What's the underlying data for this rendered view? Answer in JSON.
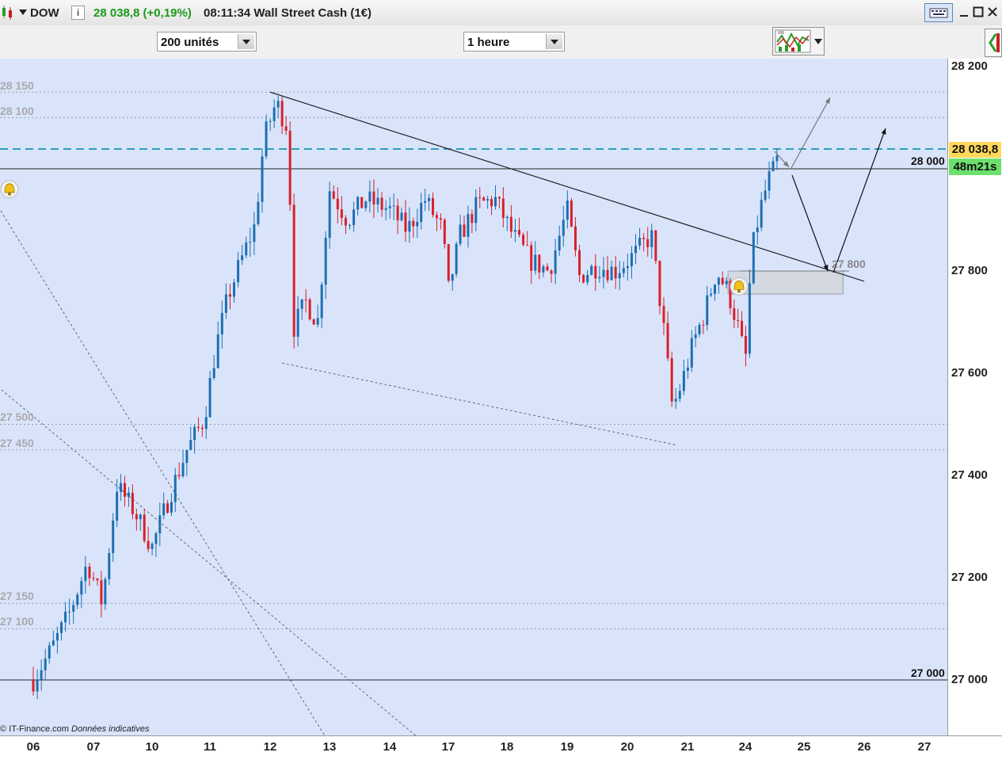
{
  "header": {
    "symbol": "DOW",
    "quote": "28 038,8 (+0,19%)",
    "time_title": "08:11:34 Wall Street Cash (1€)",
    "quote_color": "#1a9a1a"
  },
  "toolbar": {
    "units_select": "200 unités",
    "period_select": "1 heure"
  },
  "price_labels": {
    "current_price": "28 038,8",
    "countdown": "48m21s"
  },
  "footer": {
    "source": "© IT-Finance.com",
    "disclaimer": "Données indicatives"
  },
  "levels": {
    "left": [
      "28 150",
      "28 100",
      "27 500",
      "27 450",
      "27 150",
      "27 100"
    ],
    "right": [
      "28 000",
      "27 800",
      "27 000"
    ]
  },
  "chart_data": {
    "type": "candlestick",
    "title": "Wall Street Cash (1€)",
    "timeframe": "1 heure",
    "ylim": [
      26900,
      28220
    ],
    "y_ticks": [
      27000,
      27200,
      27400,
      27600,
      27800,
      28000,
      28200
    ],
    "y_tick_labels": [
      "27 000",
      "27 200",
      "27 400",
      "27 600",
      "27 800",
      "28 000",
      "28 200"
    ],
    "x_tick_labels": [
      "06",
      "07",
      "10",
      "11",
      "12",
      "13",
      "14",
      "17",
      "18",
      "19",
      "20",
      "21",
      "24",
      "25",
      "26",
      "27"
    ],
    "close_path": [
      [
        0,
        27000
      ],
      [
        0.3,
        27060
      ],
      [
        0.6,
        27130
      ],
      [
        0.9,
        27230
      ],
      [
        1.15,
        27150
      ],
      [
        1.4,
        27380
      ],
      [
        1.7,
        27330
      ],
      [
        2.0,
        27260
      ],
      [
        2.3,
        27360
      ],
      [
        2.6,
        27450
      ],
      [
        2.9,
        27510
      ],
      [
        3.1,
        27650
      ],
      [
        3.3,
        27750
      ],
      [
        3.55,
        27830
      ],
      [
        3.75,
        27890
      ],
      [
        3.9,
        28060
      ],
      [
        4.1,
        28130
      ],
      [
        4.3,
        28080
      ],
      [
        4.4,
        27690
      ],
      [
        4.6,
        27740
      ],
      [
        4.8,
        27700
      ],
      [
        5.0,
        27960
      ],
      [
        5.3,
        27900
      ],
      [
        5.6,
        27940
      ],
      [
        6.0,
        27920
      ],
      [
        6.3,
        27880
      ],
      [
        6.6,
        27940
      ],
      [
        6.9,
        27880
      ],
      [
        7.0,
        27760
      ],
      [
        7.2,
        27870
      ],
      [
        7.5,
        27930
      ],
      [
        7.8,
        27940
      ],
      [
        8.1,
        27870
      ],
      [
        8.4,
        27820
      ],
      [
        8.7,
        27800
      ],
      [
        9.0,
        27920
      ],
      [
        9.2,
        27790
      ],
      [
        9.5,
        27810
      ],
      [
        9.8,
        27800
      ],
      [
        10.1,
        27830
      ],
      [
        10.4,
        27870
      ],
      [
        10.6,
        27690
      ],
      [
        10.75,
        27530
      ],
      [
        10.9,
        27580
      ],
      [
        11.1,
        27660
      ],
      [
        11.3,
        27720
      ],
      [
        11.5,
        27800
      ],
      [
        11.7,
        27760
      ],
      [
        11.9,
        27680
      ],
      [
        12.0,
        27620
      ],
      [
        12.1,
        27830
      ],
      [
        12.25,
        27920
      ],
      [
        12.4,
        27980
      ],
      [
        12.5,
        28000
      ],
      [
        12.6,
        28038.8
      ]
    ],
    "annotations": {
      "horizontal_lines": [
        28000,
        27000
      ],
      "dashed_lines": [
        28150,
        28100,
        27500,
        27450,
        27150,
        27100
      ],
      "last_price_line": 28038.8,
      "alert_levels": [
        27960,
        27770
      ],
      "resistance_trendline": [
        [
          4.0,
          28150
        ],
        [
          14.0,
          27780
        ]
      ],
      "support_trendline": [
        [
          4.2,
          27620
        ],
        [
          10.8,
          27460
        ]
      ],
      "zone_label": "27 800"
    }
  },
  "colors": {
    "chart_bg": "#d9e4fb",
    "up": "#1d6fb0",
    "down": "#d8202a",
    "last_price_line": "#2aa0b8",
    "price_badge": "#ffd75a",
    "countdown_badge": "#6ce06c"
  }
}
